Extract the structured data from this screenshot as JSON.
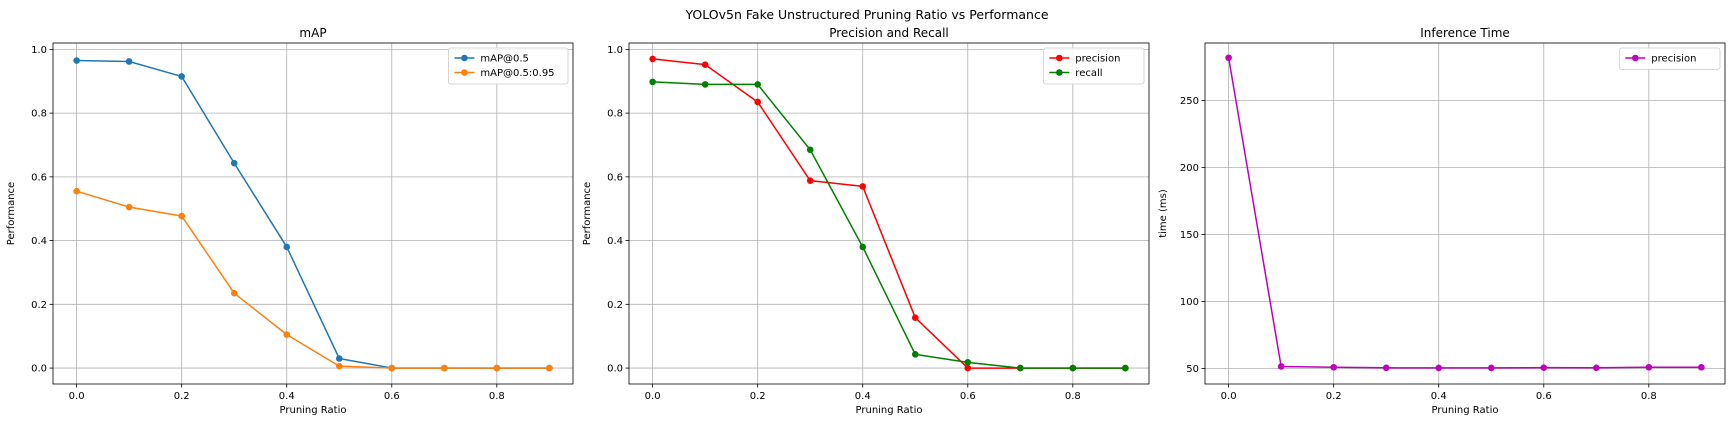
{
  "figure": {
    "title": "YOLOv5n Fake Unstructured Pruning Ratio vs Performance"
  },
  "chart_data": [
    {
      "type": "line",
      "title": "mAP",
      "xlabel": "Pruning Ratio",
      "ylabel": "Performance",
      "xlim": [
        -0.045,
        0.945
      ],
      "ylim": [
        -0.05,
        1.02
      ],
      "xticks": [
        0.0,
        0.2,
        0.4,
        0.6,
        0.8
      ],
      "xtick_labels": [
        "0.0",
        "0.2",
        "0.4",
        "0.6",
        "0.8"
      ],
      "yticks": [
        0.0,
        0.2,
        0.4,
        0.6,
        0.8,
        1.0
      ],
      "ytick_labels": [
        "0.0",
        "0.2",
        "0.4",
        "0.6",
        "0.8",
        "1.0"
      ],
      "grid": true,
      "legend": "top-right",
      "x": [
        0.0,
        0.1,
        0.2,
        0.3,
        0.4,
        0.5,
        0.6,
        0.7,
        0.8,
        0.9
      ],
      "series": [
        {
          "name": "mAP@0.5",
          "color": "#1f77b4",
          "values": [
            0.965,
            0.962,
            0.915,
            0.643,
            0.38,
            0.03,
            0.0,
            0.0,
            0.0,
            0.0
          ]
        },
        {
          "name": "mAP@0.5:0.95",
          "color": "#ff7f0e",
          "values": [
            0.555,
            0.505,
            0.477,
            0.235,
            0.105,
            0.006,
            0.0,
            0.0,
            0.0,
            0.0
          ]
        }
      ]
    },
    {
      "type": "line",
      "title": "Precision and Recall",
      "xlabel": "Pruning Ratio",
      "ylabel": "Performance",
      "xlim": [
        -0.045,
        0.945
      ],
      "ylim": [
        -0.05,
        1.02
      ],
      "xticks": [
        0.0,
        0.2,
        0.4,
        0.6,
        0.8
      ],
      "xtick_labels": [
        "0.0",
        "0.2",
        "0.4",
        "0.6",
        "0.8"
      ],
      "yticks": [
        0.0,
        0.2,
        0.4,
        0.6,
        0.8,
        1.0
      ],
      "ytick_labels": [
        "0.0",
        "0.2",
        "0.4",
        "0.6",
        "0.8",
        "1.0"
      ],
      "grid": true,
      "legend": "top-right",
      "x": [
        0.0,
        0.1,
        0.2,
        0.3,
        0.4,
        0.5,
        0.6,
        0.7,
        0.8,
        0.9
      ],
      "series": [
        {
          "name": "precision",
          "color": "#ff0000",
          "values": [
            0.97,
            0.952,
            0.835,
            0.588,
            0.57,
            0.158,
            0.0,
            0.0,
            0.0,
            0.0
          ]
        },
        {
          "name": "recall",
          "color": "#008000",
          "values": [
            0.898,
            0.89,
            0.89,
            0.685,
            0.38,
            0.043,
            0.018,
            0.0,
            0.0,
            0.0
          ]
        }
      ]
    },
    {
      "type": "line",
      "title": "Inference Time",
      "xlabel": "Pruning Ratio",
      "ylabel": "time (ms)",
      "xlim": [
        -0.045,
        0.945
      ],
      "ylim": [
        38.5,
        293
      ],
      "xticks": [
        0.0,
        0.2,
        0.4,
        0.6,
        0.8
      ],
      "xtick_labels": [
        "0.0",
        "0.2",
        "0.4",
        "0.6",
        "0.8"
      ],
      "yticks": [
        50,
        100,
        150,
        200,
        250
      ],
      "ytick_labels": [
        "50",
        "100",
        "150",
        "200",
        "250"
      ],
      "grid": true,
      "legend": "top-right",
      "x": [
        0.0,
        0.1,
        0.2,
        0.3,
        0.4,
        0.5,
        0.6,
        0.7,
        0.8,
        0.9
      ],
      "series": [
        {
          "name": "precision",
          "color": "#bf00bf",
          "values": [
            282.0,
            51.6,
            51.0,
            50.6,
            50.5,
            50.5,
            50.7,
            50.6,
            51.0,
            51.0
          ]
        }
      ]
    }
  ]
}
